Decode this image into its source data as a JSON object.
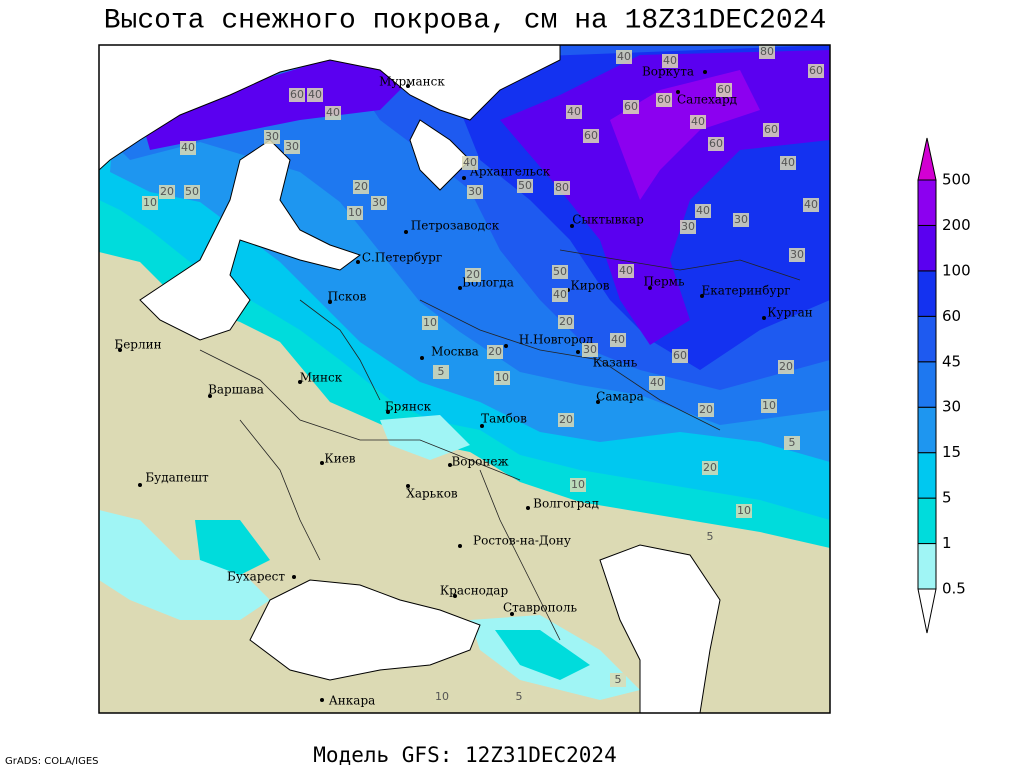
{
  "title": "Высота снежного покрова, см на 18Z31DEC2024",
  "footer": "Модель GFS: 12Z31DEC2024",
  "credit": "GrADS: COLA/IGES",
  "cities": [
    "Мурманск",
    "Воркута",
    "Салехард",
    "Архангельск",
    "Петрозаводск",
    "Сыктывкар",
    "С.Петербург",
    "Вологда",
    "Киров",
    "Пермь",
    "Екатеринбург",
    "Курган",
    "Псков",
    "Н.Новгород",
    "Москва",
    "Казань",
    "Берлин",
    "Минск",
    "Варшава",
    "Брянск",
    "Тамбов",
    "Самара",
    "Киев",
    "Воронеж",
    "Будапешт",
    "Харьков",
    "Волгоград",
    "Ростов-на-Дону",
    "Бухарест",
    "Краснодар",
    "Ставрополь",
    "Анкара"
  ],
  "contour_labels": [
    60,
    40,
    40,
    30,
    30,
    40,
    20,
    50,
    10,
    40,
    30,
    50,
    80,
    20,
    30,
    10,
    40,
    60,
    60,
    60,
    40,
    40,
    80,
    60,
    60,
    40,
    60,
    60,
    40,
    40,
    30,
    30,
    40,
    30,
    40,
    50,
    40,
    20,
    10,
    20,
    40,
    30,
    20,
    60,
    40,
    5,
    20,
    10,
    10,
    20,
    20,
    5,
    20,
    10,
    10,
    5,
    10,
    5,
    5
  ],
  "legend": {
    "levels": [
      0.5,
      1,
      5,
      15,
      30,
      45,
      60,
      100,
      200,
      500
    ],
    "colors": [
      "#ffffff",
      "#a0f5f5",
      "#00dcdc",
      "#00c8f0",
      "#1e96f0",
      "#1e78f0",
      "#1e5af0",
      "#1432f0",
      "#5a00f0",
      "#8c00f0",
      "#d200d2"
    ]
  }
}
